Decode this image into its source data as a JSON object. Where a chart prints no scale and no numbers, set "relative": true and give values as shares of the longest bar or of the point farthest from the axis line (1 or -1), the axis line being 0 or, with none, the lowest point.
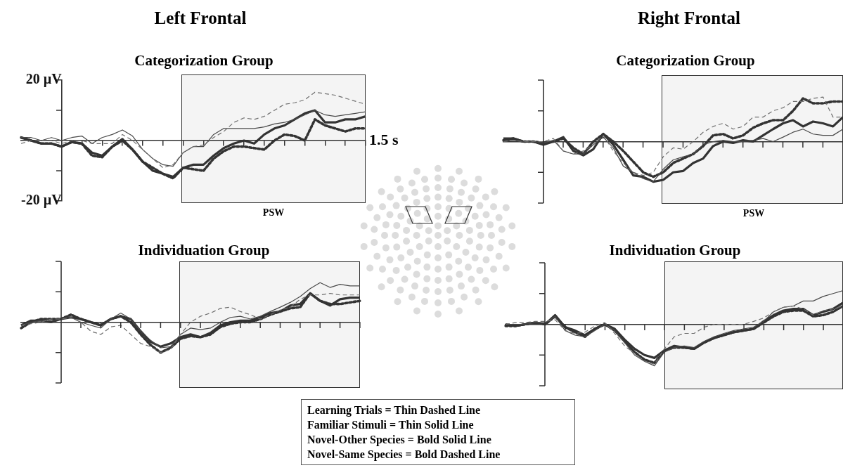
{
  "chart_data": [
    {
      "type": "line",
      "title": "Left Frontal",
      "subtitle": "Categorization Group",
      "xlabel": "1.5 s",
      "categories": [
        null,
        null,
        null,
        null,
        null,
        null,
        null,
        null,
        null,
        null,
        null,
        null,
        null,
        null,
        null,
        null,
        null,
        null,
        null,
        null,
        null,
        null,
        null,
        null,
        null,
        null,
        null,
        null,
        null,
        null,
        null,
        null,
        null,
        null,
        null
      ],
      "series": [
        {
          "color": "#6e6e6e",
          "line_style": "dashed",
          "values": [
            -1,
            0,
            0,
            0,
            -1,
            0,
            0,
            -1,
            -1,
            -1,
            2,
            0,
            -3,
            -6,
            -9,
            -8,
            -4,
            -2,
            -1.5,
            1,
            3,
            6,
            7.5,
            7,
            8,
            10,
            12,
            12.5,
            13.5,
            16,
            15.5,
            15,
            14,
            13,
            12
          ]
        },
        {
          "color": "#4a4a4a",
          "line_style": "solid",
          "values": [
            1,
            1,
            0,
            1,
            0,
            1,
            1.5,
            -1,
            1,
            2,
            3.5,
            1.5,
            -3,
            -6,
            -8,
            -8.5,
            -4,
            -2,
            -2,
            2,
            4,
            4,
            4,
            4,
            4.5,
            5.5,
            6,
            7,
            8.5,
            10,
            8.5,
            8,
            8.5,
            9,
            9.5
          ]
        },
        {
          "color": "#333333",
          "line_style": "solid",
          "values": [
            1,
            0,
            -1,
            -1,
            -2,
            -0.5,
            -1,
            -4,
            -5,
            -2,
            0.5,
            -3,
            -7,
            -10,
            -11,
            -12,
            -9,
            -8,
            -8,
            -5,
            -2.5,
            -1,
            0,
            -1,
            2,
            4,
            5,
            7,
            9,
            10,
            6,
            6,
            7,
            7,
            8
          ]
        },
        {
          "color": "#333333",
          "line_style": "dotted",
          "values": [
            1,
            0,
            -1,
            -1,
            -2,
            -0.5,
            -1,
            -5,
            -5.5,
            -2,
            0,
            -3,
            -7,
            -9,
            -11,
            -12.5,
            -9,
            -9.5,
            -10,
            -6,
            -3.5,
            -2,
            -2,
            -2.5,
            -3,
            0,
            2,
            1.5,
            0,
            7,
            5,
            4,
            3,
            4,
            4
          ]
        }
      ],
      "ylim": [
        -20,
        20
      ],
      "yticks": [
        {
          "value": -20,
          "label": "-20 µV"
        },
        {
          "value": 20,
          "label": "20 µV"
        }
      ],
      "annotations": [
        "PSW",
        "Learning Trials = Thin Dashed Line",
        "Familiar Stimuli = Thin Solid Line",
        "Novel-Other Species = Bold Solid Line",
        "Novel-Same Species = Bold Dashed Line"
      ],
      "tick_labels": "y",
      "grid": false,
      "legend": false
    },
    {
      "type": "line",
      "title": "Right Frontal",
      "subtitle": "Categorization Group",
      "relative": true,
      "categories": [
        null,
        null,
        null,
        null,
        null,
        null,
        null,
        null,
        null,
        null,
        null,
        null,
        null,
        null,
        null,
        null,
        null,
        null,
        null,
        null,
        null,
        null,
        null,
        null,
        null,
        null,
        null,
        null,
        null,
        null,
        null,
        null,
        null,
        null,
        null
      ],
      "series": [
        {
          "color": "#6e6e6e",
          "line_style": "dashed",
          "values": [
            0,
            0.03,
            0,
            0,
            0,
            0.07,
            -0.21,
            -0.28,
            -0.21,
            -0.07,
            0.14,
            -0.21,
            -0.48,
            -0.69,
            -0.76,
            -0.69,
            -0.34,
            -0.14,
            -0.17,
            0,
            0.21,
            0.34,
            0.41,
            0.28,
            0.34,
            0.55,
            0.55,
            0.69,
            0.76,
            0.9,
            0.9,
            0.97,
            1,
            0.55,
            0.55
          ]
        },
        {
          "color": "#4a4a4a",
          "line_style": "solid",
          "values": [
            0,
            0.03,
            0,
            0,
            -0.03,
            0.03,
            -0.21,
            -0.28,
            -0.28,
            -0.07,
            0.1,
            -0.14,
            -0.55,
            -0.69,
            -0.83,
            -0.9,
            -0.62,
            -0.41,
            -0.34,
            -0.28,
            -0.07,
            0,
            0.03,
            0,
            0,
            0.03,
            0.07,
            0,
            0.1,
            0.21,
            0.28,
            0.17,
            0.14,
            0.14,
            0.28
          ]
        },
        {
          "color": "#333333",
          "line_style": "solid",
          "values": [
            0.07,
            0.07,
            0,
            0,
            -0.07,
            0,
            0.1,
            -0.21,
            -0.31,
            -0.17,
            0.17,
            -0.07,
            -0.41,
            -0.76,
            -0.79,
            -0.9,
            -0.86,
            -0.69,
            -0.66,
            -0.48,
            -0.38,
            -0.1,
            0,
            -0.03,
            0.03,
            0,
            0.14,
            0.28,
            0.41,
            0.48,
            0.34,
            0.45,
            0.41,
            0.34,
            0.55
          ]
        },
        {
          "color": "#333333",
          "line_style": "dotted",
          "values": [
            0.03,
            0.07,
            0,
            0,
            -0.03,
            0,
            0.07,
            -0.14,
            -0.28,
            0,
            0.17,
            0,
            -0.21,
            -0.45,
            -0.69,
            -0.79,
            -0.69,
            -0.48,
            -0.38,
            -0.28,
            -0.1,
            0.14,
            0.17,
            0.07,
            0.14,
            0.31,
            0.41,
            0.48,
            0.48,
            0.69,
            0.97,
            0.86,
            0.86,
            0.9,
            0.9
          ]
        }
      ],
      "annotations": [
        "PSW"
      ],
      "tick_labels": false,
      "grid": false,
      "legend": false
    },
    {
      "type": "line",
      "title": "Individuation Group",
      "relative": true,
      "categories": [
        null,
        null,
        null,
        null,
        null,
        null,
        null,
        null,
        null,
        null,
        null,
        null,
        null,
        null,
        null,
        null,
        null,
        null,
        null,
        null,
        null,
        null,
        null,
        null,
        null,
        null,
        null,
        null,
        null,
        null,
        null,
        null,
        null,
        null,
        null
      ],
      "series": [
        {
          "color": "#6e6e6e",
          "line_style": "dashed",
          "values": [
            -0.08,
            -0.04,
            0,
            0.08,
            0.08,
            0.12,
            0,
            -0.23,
            -0.31,
            -0.12,
            -0.08,
            -0.31,
            -0.54,
            -0.62,
            -0.77,
            -0.69,
            -0.31,
            0,
            0.15,
            0.23,
            0.35,
            0.38,
            0.27,
            0.19,
            0.08,
            0.19,
            0.31,
            0.38,
            0.58,
            0.69,
            0.69,
            0.73,
            0.69,
            0.69,
            0.69
          ]
        },
        {
          "color": "#4a4a4a",
          "line_style": "solid",
          "values": [
            -0.08,
            0,
            0.04,
            0.04,
            0.08,
            0.12,
            0,
            -0.08,
            -0.15,
            0.08,
            0.23,
            0.08,
            -0.23,
            -0.46,
            -0.65,
            -0.62,
            -0.31,
            -0.15,
            -0.19,
            -0.15,
            0,
            0.12,
            0.15,
            0.08,
            0.15,
            0.27,
            0.38,
            0.5,
            0.65,
            0.85,
            1,
            0.88,
            0.96,
            0.92,
            0.92
          ]
        },
        {
          "color": "#333333",
          "line_style": "solid",
          "values": [
            -0.08,
            0.04,
            0.04,
            0,
            0.08,
            0.12,
            0.08,
            0,
            -0.08,
            0.08,
            0.15,
            0.08,
            -0.23,
            -0.5,
            -0.62,
            -0.54,
            -0.38,
            -0.31,
            -0.38,
            -0.27,
            -0.08,
            0,
            0.04,
            0.04,
            0.12,
            0.23,
            0.27,
            0.42,
            0.46,
            0.73,
            0.54,
            0.42,
            0.58,
            0.62,
            0.62
          ]
        },
        {
          "color": "#333333",
          "line_style": "dotted",
          "values": [
            -0.15,
            0,
            0.08,
            0.08,
            0.08,
            0.19,
            0.08,
            0,
            -0.08,
            0.08,
            0.15,
            0,
            -0.31,
            -0.58,
            -0.77,
            -0.65,
            -0.42,
            -0.35,
            -0.38,
            -0.31,
            -0.12,
            -0.04,
            0,
            0,
            0.08,
            0.19,
            0.27,
            0.35,
            0.38,
            0.73,
            0.54,
            0.46,
            0.46,
            0.5,
            0.54
          ]
        }
      ],
      "tick_labels": false,
      "grid": false,
      "legend": false
    },
    {
      "type": "line",
      "title": "Individuation Group",
      "relative": true,
      "categories": [
        null,
        null,
        null,
        null,
        null,
        null,
        null,
        null,
        null,
        null,
        null,
        null,
        null,
        null,
        null,
        null,
        null,
        null,
        null,
        null,
        null,
        null,
        null,
        null,
        null,
        null,
        null,
        null,
        null,
        null,
        null,
        null,
        null,
        null,
        null
      ],
      "series": [
        {
          "color": "#6e6e6e",
          "line_style": "dashed",
          "values": [
            0,
            0.04,
            0.04,
            0.07,
            0.07,
            0.11,
            -0.15,
            -0.22,
            -0.19,
            -0.04,
            0.04,
            -0.22,
            -0.52,
            -0.7,
            -0.89,
            -0.96,
            -0.59,
            -0.3,
            -0.22,
            -0.22,
            -0.07,
            0,
            0,
            0,
            0,
            0.07,
            0.15,
            0.3,
            0.41,
            0.44,
            0.37,
            0.22,
            0.33,
            0.37,
            0.44
          ]
        },
        {
          "color": "#4a4a4a",
          "line_style": "solid",
          "values": [
            0,
            0,
            0,
            0.04,
            0.04,
            0.19,
            -0.15,
            -0.26,
            -0.3,
            -0.15,
            0,
            -0.15,
            -0.44,
            -0.74,
            -0.89,
            -1,
            -0.67,
            -0.56,
            -0.52,
            -0.56,
            -0.41,
            -0.3,
            -0.22,
            -0.15,
            -0.11,
            -0.07,
            0.07,
            0.3,
            0.41,
            0.44,
            0.56,
            0.56,
            0.67,
            0.74,
            0.81
          ]
        },
        {
          "color": "#333333",
          "line_style": "solid",
          "values": [
            0,
            -0.04,
            0,
            0.04,
            0,
            0.22,
            -0.07,
            -0.15,
            -0.26,
            -0.11,
            0,
            -0.11,
            -0.37,
            -0.59,
            -0.74,
            -0.81,
            -0.63,
            -0.52,
            -0.56,
            -0.59,
            -0.44,
            -0.33,
            -0.26,
            -0.19,
            -0.15,
            -0.11,
            0.07,
            0.22,
            0.33,
            0.37,
            0.37,
            0.22,
            0.3,
            0.37,
            0.52
          ]
        },
        {
          "color": "#333333",
          "line_style": "dotted",
          "values": [
            -0.04,
            -0.04,
            0,
            0.04,
            0,
            0.19,
            -0.07,
            -0.19,
            -0.3,
            -0.11,
            0,
            -0.15,
            -0.41,
            -0.67,
            -0.85,
            -0.93,
            -0.63,
            -0.56,
            -0.56,
            -0.59,
            -0.44,
            -0.33,
            -0.26,
            -0.19,
            -0.15,
            -0.11,
            0.04,
            0.19,
            0.3,
            0.33,
            0.33,
            0.19,
            0.22,
            0.3,
            0.44
          ]
        }
      ],
      "tick_labels": false,
      "grid": false,
      "legend": false
    }
  ]
}
